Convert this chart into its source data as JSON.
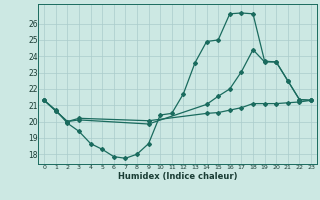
{
  "xlabel": "Humidex (Indice chaleur)",
  "bg_color": "#cce8e3",
  "grid_color": "#aacccc",
  "line_color": "#1a6b5e",
  "x_ticks": [
    0,
    1,
    2,
    3,
    4,
    5,
    6,
    7,
    8,
    9,
    10,
    11,
    12,
    13,
    14,
    15,
    16,
    17,
    18,
    19,
    20,
    21,
    22,
    23
  ],
  "y_ticks": [
    18,
    19,
    20,
    21,
    22,
    23,
    24,
    25,
    26
  ],
  "xlim": [
    -0.5,
    23.5
  ],
  "ylim": [
    17.4,
    27.2
  ],
  "series": [
    {
      "x": [
        0,
        1,
        2,
        3,
        4,
        5,
        6,
        7,
        8,
        9,
        10,
        11,
        12,
        13,
        14,
        15,
        16,
        17,
        18,
        19,
        20,
        21,
        22,
        23
      ],
      "y": [
        21.3,
        20.7,
        19.9,
        19.4,
        18.65,
        18.3,
        17.85,
        17.75,
        18.0,
        18.65,
        20.4,
        20.5,
        21.7,
        23.6,
        24.9,
        25.0,
        26.6,
        26.65,
        26.6,
        23.7,
        23.65,
        22.5,
        21.35,
        21.3
      ]
    },
    {
      "x": [
        0,
        23
      ],
      "y": [
        21.3,
        21.3
      ]
    },
    {
      "x": [
        0,
        23
      ],
      "y": [
        21.3,
        21.3
      ]
    }
  ],
  "line1": {
    "x": [
      0,
      1,
      2,
      3,
      9,
      14,
      15,
      16,
      17,
      18,
      19,
      20,
      21,
      22,
      23
    ],
    "y": [
      21.3,
      20.65,
      20.0,
      20.2,
      20.05,
      20.5,
      20.55,
      20.7,
      20.85,
      21.1,
      21.1,
      21.1,
      21.15,
      21.2,
      21.3
    ]
  },
  "line2": {
    "x": [
      0,
      1,
      2,
      3,
      9,
      14,
      15,
      16,
      17,
      18,
      19,
      20,
      21,
      22,
      23
    ],
    "y": [
      21.3,
      20.65,
      20.0,
      20.1,
      19.85,
      21.05,
      21.55,
      22.0,
      23.05,
      24.4,
      23.65,
      23.65,
      22.5,
      21.35,
      21.3
    ]
  }
}
